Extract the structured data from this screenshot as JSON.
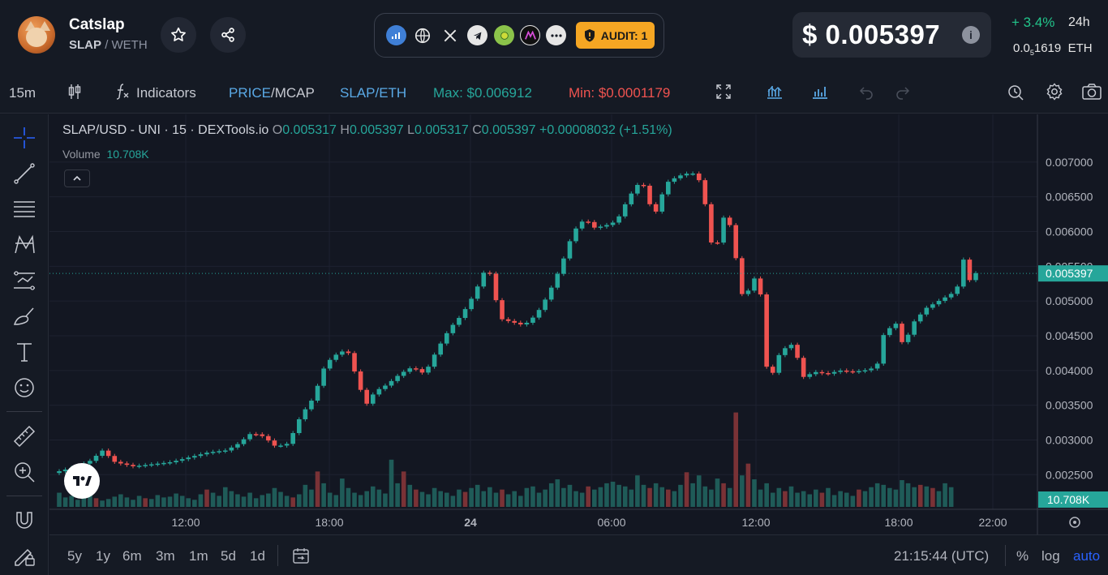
{
  "token": {
    "name": "Catslap",
    "base": "SLAP",
    "quote": "/ WETH",
    "logo_icon": "cat-logo"
  },
  "header_buttons": [
    "star-icon",
    "share-icon"
  ],
  "links": {
    "icons": [
      "dextools-chart-icon",
      "globe-icon",
      "x-twitter-icon",
      "telegram-icon",
      "coin-icon",
      "app-icon",
      "more-icon"
    ],
    "audit_label": "AUDIT: 1"
  },
  "price": {
    "usd": "$ 0.005397",
    "info_icon": "i",
    "change": "+ 3.4%",
    "change_period": "24h",
    "eth_prefix": "0.0",
    "eth_sub": "5",
    "eth_rest": "1619",
    "eth_unit": "ETH"
  },
  "toolbar": {
    "interval": "15m",
    "indicators": "Indicators",
    "price_label": "PRICE",
    "mcap_label": "/MCAP",
    "pair": "SLAP/ETH",
    "max": "Max: $0.006912",
    "min": "Min: $0.0001179"
  },
  "legend": {
    "symbol": "SLAP/USD - UNI · 15 · DEXTools.io",
    "o_label": "O",
    "o": "0.005317",
    "h_label": "H",
    "h": "0.005397",
    "l_label": "L",
    "l": "0.005317",
    "c_label": "C",
    "c": "0.005397",
    "change": "+0.00008032 (+1.51%)",
    "volume_label": "Volume",
    "volume": "10.708K"
  },
  "chart_data": {
    "type": "candlestick",
    "y_ticks": [
      "0.007000",
      "0.006500",
      "0.006000",
      "0.005500",
      "0.005000",
      "0.004500",
      "0.004000",
      "0.003500",
      "0.003000",
      "0.002500"
    ],
    "ylim": [
      0.0022,
      0.00722
    ],
    "x_ticks": [
      "12:00",
      "18:00",
      "24",
      "06:00",
      "12:00",
      "18:00",
      "22:00"
    ],
    "last_price_label": "0.005397",
    "last_volume_label": "10.708K",
    "up_color": "#26a69a",
    "down_color": "#ef5350",
    "close_path": [
      [
        0,
        0.00255
      ],
      [
        6,
        0.00262
      ],
      [
        10,
        0.0027
      ],
      [
        14,
        0.00285
      ],
      [
        18,
        0.00268
      ],
      [
        24,
        0.00262
      ],
      [
        30,
        0.00265
      ],
      [
        36,
        0.00268
      ],
      [
        42,
        0.00275
      ],
      [
        48,
        0.00282
      ],
      [
        54,
        0.00285
      ],
      [
        58,
        0.00295
      ],
      [
        62,
        0.0031
      ],
      [
        66,
        0.00305
      ],
      [
        70,
        0.0029
      ],
      [
        74,
        0.00295
      ],
      [
        78,
        0.00335
      ],
      [
        82,
        0.0036
      ],
      [
        86,
        0.0041
      ],
      [
        90,
        0.00425
      ],
      [
        93,
        0.0043
      ],
      [
        96,
        0.0039
      ],
      [
        99,
        0.0035
      ],
      [
        102,
        0.0037
      ],
      [
        106,
        0.0038
      ],
      [
        110,
        0.00395
      ],
      [
        114,
        0.00405
      ],
      [
        118,
        0.00395
      ],
      [
        122,
        0.0043
      ],
      [
        126,
        0.0046
      ],
      [
        130,
        0.0048
      ],
      [
        134,
        0.0051
      ],
      [
        138,
        0.0055
      ],
      [
        140,
        0.0053
      ],
      [
        142,
        0.00475
      ],
      [
        146,
        0.0047
      ],
      [
        150,
        0.00465
      ],
      [
        154,
        0.0048
      ],
      [
        158,
        0.0051
      ],
      [
        162,
        0.0055
      ],
      [
        166,
        0.006
      ],
      [
        170,
        0.0062
      ],
      [
        172,
        0.00605
      ],
      [
        176,
        0.00608
      ],
      [
        180,
        0.00615
      ],
      [
        184,
        0.0065
      ],
      [
        188,
        0.00675
      ],
      [
        190,
        0.0065
      ],
      [
        192,
        0.0062
      ],
      [
        196,
        0.0067
      ],
      [
        200,
        0.0068
      ],
      [
        204,
        0.00685
      ],
      [
        206,
        0.0068
      ],
      [
        208,
        0.0066
      ],
      [
        210,
        0.0059
      ],
      [
        212,
        0.0057
      ],
      [
        214,
        0.0062
      ],
      [
        216,
        0.0062
      ],
      [
        218,
        0.0058
      ],
      [
        220,
        0.0051
      ],
      [
        222,
        0.0051
      ],
      [
        224,
        0.0053
      ],
      [
        226,
        0.0054
      ],
      [
        228,
        0.0041
      ],
      [
        230,
        0.0039
      ],
      [
        232,
        0.0042
      ],
      [
        236,
        0.0044
      ],
      [
        238,
        0.00425
      ],
      [
        240,
        0.0039
      ],
      [
        244,
        0.00398
      ],
      [
        248,
        0.00395
      ],
      [
        252,
        0.004
      ],
      [
        256,
        0.00398
      ],
      [
        260,
        0.004
      ],
      [
        264,
        0.00405
      ],
      [
        266,
        0.0045
      ],
      [
        270,
        0.0047
      ],
      [
        272,
        0.0044
      ],
      [
        274,
        0.0045
      ],
      [
        276,
        0.0047
      ],
      [
        280,
        0.0049
      ],
      [
        284,
        0.005
      ],
      [
        288,
        0.0051
      ],
      [
        290,
        0.0052
      ],
      [
        292,
        0.0056
      ],
      [
        294,
        0.0053
      ],
      [
        296,
        0.0054
      ]
    ],
    "volumes": [
      18,
      12,
      14,
      9,
      22,
      15,
      11,
      8,
      10,
      13,
      16,
      12,
      9,
      14,
      11,
      10,
      15,
      12,
      13,
      17,
      14,
      11,
      9,
      16,
      22,
      18,
      14,
      25,
      20,
      16,
      13,
      18,
      11,
      15,
      17,
      24,
      19,
      14,
      12,
      16,
      28,
      22,
      45,
      30,
      18,
      15,
      36,
      24,
      18,
      15,
      20,
      26,
      22,
      17,
      60,
      30,
      45,
      28,
      22,
      19,
      16,
      24,
      20,
      18,
      14,
      22,
      19,
      24,
      28,
      20,
      25,
      18,
      22,
      16,
      20,
      14,
      24,
      26,
      18,
      22,
      30,
      35,
      24,
      28,
      20,
      18,
      26,
      22,
      25,
      30,
      32,
      28,
      26,
      22,
      40,
      28,
      24,
      30,
      25,
      22,
      20,
      28,
      44,
      30,
      40,
      26,
      22,
      36,
      30,
      24,
      120,
      40,
      55,
      35,
      22,
      30,
      18,
      24,
      20,
      26,
      18,
      20,
      16,
      22,
      18,
      24,
      15,
      20,
      18,
      14,
      22,
      20,
      25,
      30,
      28,
      24,
      22,
      34,
      30,
      25,
      28,
      26,
      24,
      20,
      30,
      25
    ],
    "volume_down_idx": [
      6,
      14,
      24,
      38,
      42,
      56,
      58,
      66,
      72,
      86,
      96,
      99,
      102,
      108,
      110,
      112,
      118,
      124,
      130,
      140,
      142
    ]
  },
  "bottombar": {
    "ranges": [
      "5y",
      "1y",
      "6m",
      "3m",
      "1m",
      "5d",
      "1d"
    ],
    "utc": "21:15:44 (UTC)",
    "percent": "%",
    "log": "log",
    "auto": "auto"
  }
}
